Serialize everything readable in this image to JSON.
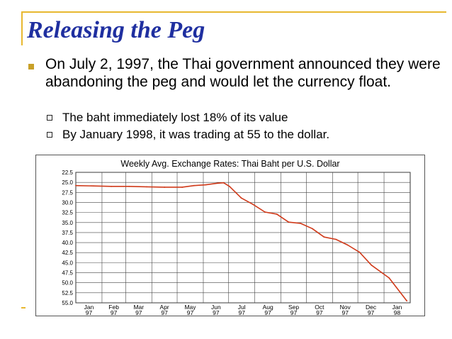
{
  "slide": {
    "title": "Releasing the Peg",
    "bullet": "On July 2, 1997, the Thai government announced they were abandoning the peg and would let the currency float.",
    "sub_bullets": [
      "The baht immediately lost 18% of its value",
      "By January 1998, it was trading at 55 to the dollar."
    ],
    "colors": {
      "title": "#1f2fa0",
      "accent": "#e8b830",
      "bullet": "#c8a028",
      "line": "#d03a1a"
    }
  },
  "chart_data": {
    "type": "line",
    "title": "Weekly Avg. Exchange Rates: Thai Baht per U.S. Dollar",
    "xlabel": "",
    "ylabel": "",
    "y_reversed": true,
    "ylim": [
      22.5,
      55.0
    ],
    "y_ticks": [
      "22.5",
      "25.0",
      "27.5",
      "30.0",
      "32.5",
      "35.0",
      "37.5",
      "40.0",
      "42.5",
      "45.0",
      "47.5",
      "50.0",
      "52.5",
      "55.0"
    ],
    "x_ticks": [
      {
        "month": "Jan",
        "year": "97"
      },
      {
        "month": "Feb",
        "year": "97"
      },
      {
        "month": "Mar",
        "year": "97"
      },
      {
        "month": "Apr",
        "year": "97"
      },
      {
        "month": "May",
        "year": "97"
      },
      {
        "month": "Jun",
        "year": "97"
      },
      {
        "month": "Jul",
        "year": "97"
      },
      {
        "month": "Aug",
        "year": "97"
      },
      {
        "month": "Sep",
        "year": "97"
      },
      {
        "month": "Oct",
        "year": "97"
      },
      {
        "month": "Nov",
        "year": "97"
      },
      {
        "month": "Dec",
        "year": "97"
      },
      {
        "month": "Jan",
        "year": "98"
      }
    ],
    "grid": true,
    "series": [
      {
        "x": [
          "1997-01-01",
          "1997-01-22",
          "1997-02-12",
          "1997-03-05",
          "1997-03-26",
          "1997-04-16",
          "1997-05-07",
          "1997-05-21",
          "1997-06-04",
          "1997-06-18",
          "1997-06-25",
          "1997-07-02",
          "1997-07-16",
          "1997-07-30",
          "1997-08-13",
          "1997-08-27",
          "1997-09-10",
          "1997-09-24",
          "1997-10-08",
          "1997-10-22",
          "1997-11-05",
          "1997-11-19",
          "1997-12-03",
          "1997-12-17",
          "1998-01-07",
          "1998-01-28"
        ],
        "values": [
          25.8,
          25.9,
          26.0,
          26.0,
          26.1,
          26.2,
          26.2,
          25.8,
          25.6,
          25.2,
          25.1,
          26.0,
          28.9,
          30.5,
          32.4,
          32.9,
          34.9,
          35.2,
          36.5,
          38.6,
          39.2,
          40.6,
          42.4,
          45.6,
          48.8,
          54.5
        ]
      }
    ]
  }
}
